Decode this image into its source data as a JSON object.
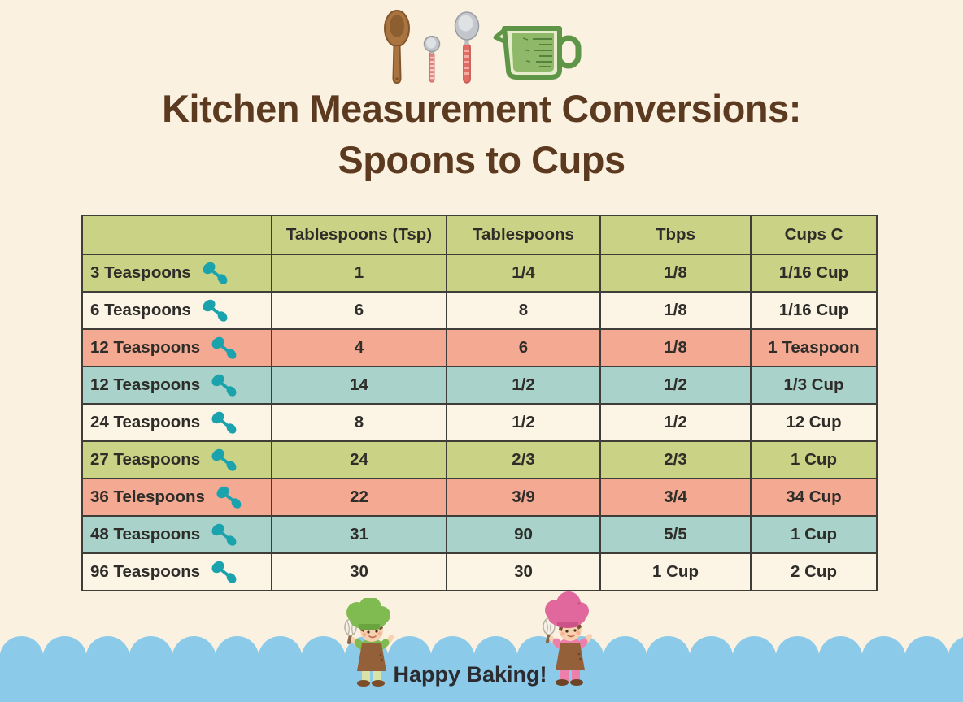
{
  "title": {
    "line1": "Kitchen Measurement Conversions:",
    "line2": "Spoons to Cups"
  },
  "footer": {
    "message": "Happy Baking!"
  },
  "table": {
    "headers": [
      "",
      "Tablespoons (Tsp)",
      "Tablespoons",
      "Tbps",
      "Cups C"
    ],
    "rows": [
      {
        "label": "3 Teaspoons",
        "values": [
          "1",
          "1/4",
          "1/8",
          "1/16 Cup"
        ],
        "color": "green"
      },
      {
        "label": "6 Teaspoons",
        "values": [
          "6",
          "8",
          "1/8",
          "1/16 Cup"
        ],
        "color": "cream"
      },
      {
        "label": "12 Teaspoons",
        "values": [
          "4",
          "6",
          "1/8",
          "1 Teaspoon"
        ],
        "color": "salmon"
      },
      {
        "label": "12 Teaspoons",
        "values": [
          "14",
          "1/2",
          "1/2",
          "1/3 Cup"
        ],
        "color": "teal"
      },
      {
        "label": "24 Teaspoons",
        "values": [
          "8",
          "1/2",
          "1/2",
          "12 Cup"
        ],
        "color": "cream"
      },
      {
        "label": "27 Teaspoons",
        "values": [
          "24",
          "2/3",
          "2/3",
          "1 Cup"
        ],
        "color": "green"
      },
      {
        "label": "36 Telespoons",
        "values": [
          "22",
          "3/9",
          "3/4",
          "34 Cup"
        ],
        "color": "salmon"
      },
      {
        "label": "48 Teaspoons",
        "values": [
          "31",
          "90",
          "5/5",
          "1 Cup"
        ],
        "color": "teal"
      },
      {
        "label": "96 Teaspoons",
        "values": [
          "30",
          "30",
          "1 Cup",
          "2 Cup"
        ],
        "color": "cream"
      }
    ]
  },
  "chart_data": {
    "type": "table",
    "title": "Kitchen Measurement Conversions: Spoons to Cups",
    "columns": [
      "",
      "Tablespoons (Tsp)",
      "Tablespoons",
      "Tbps",
      "Cups C"
    ],
    "rows": [
      [
        "3 Teaspoons",
        "1",
        "1/4",
        "1/8",
        "1/16 Cup"
      ],
      [
        "6 Teaspoons",
        "6",
        "8",
        "1/8",
        "1/16 Cup"
      ],
      [
        "12 Teaspoons",
        "4",
        "6",
        "1/8",
        "1 Teaspoon"
      ],
      [
        "12 Teaspoons",
        "14",
        "1/2",
        "1/2",
        "1/3 Cup"
      ],
      [
        "24 Teaspoons",
        "8",
        "1/2",
        "1/2",
        "12 Cup"
      ],
      [
        "27 Teaspoons",
        "24",
        "2/3",
        "2/3",
        "1 Cup"
      ],
      [
        "36 Telespoons",
        "22",
        "3/9",
        "3/4",
        "34 Cup"
      ],
      [
        "48 Teaspoons",
        "31",
        "90",
        "5/5",
        "1 Cup"
      ],
      [
        "96 Teaspoons",
        "30",
        "30",
        "1 Cup",
        "2 Cup"
      ]
    ]
  },
  "icons": {
    "header": [
      "wooden-spoon",
      "small-measuring-spoon",
      "large-measuring-spoon",
      "measuring-cup"
    ],
    "row_icon": "teaspoon",
    "footer": [
      "chef-kid-green",
      "chef-kid-pink"
    ]
  },
  "colors": {
    "background": "#faf1e1",
    "table_green": "#cad285",
    "table_cream": "#fcf4e5",
    "table_salmon": "#f4a992",
    "table_teal": "#a9d2ca",
    "border": "#3f3d37",
    "title_brown": "#5c3a20",
    "text_dark": "#2e2d29",
    "wave_blue": "#8ccae9",
    "spoon_teal": "#1ba3ad"
  }
}
